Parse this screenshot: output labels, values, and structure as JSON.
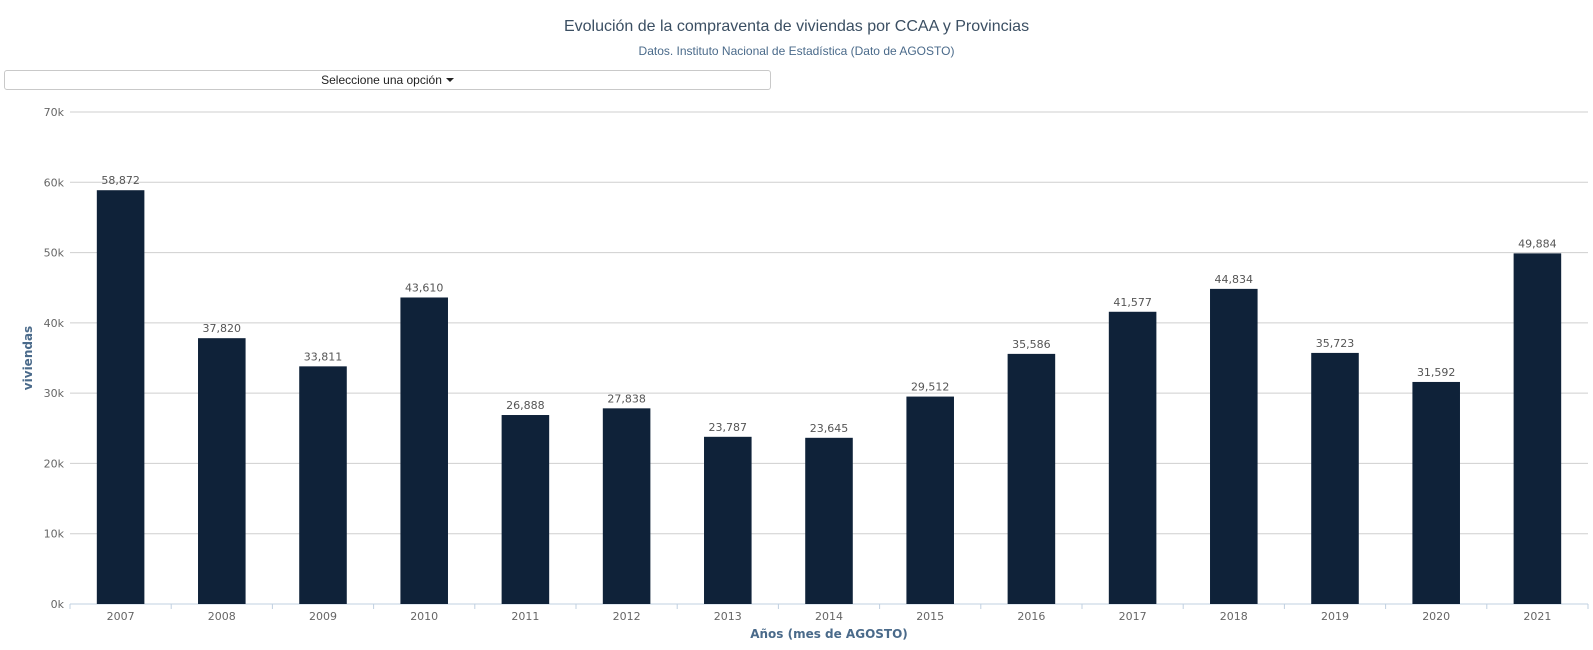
{
  "chart_data": {
    "type": "bar",
    "title": "Evolución de la compraventa de viviendas por CCAA y Provincias",
    "subtitle": "Datos. Instituto Nacional de Estadística (Dato de AGOSTO)",
    "xlabel": "Años (mes de AGOSTO)",
    "ylabel": "viviendas",
    "ylim": [
      0,
      70000
    ],
    "yticks": [
      0,
      10000,
      20000,
      30000,
      40000,
      50000,
      60000,
      70000
    ],
    "ytick_labels": [
      "0k",
      "10k",
      "20k",
      "30k",
      "40k",
      "50k",
      "60k",
      "70k"
    ],
    "categories": [
      "2007",
      "2008",
      "2009",
      "2010",
      "2011",
      "2012",
      "2013",
      "2014",
      "2015",
      "2016",
      "2017",
      "2018",
      "2019",
      "2020",
      "2021"
    ],
    "values": [
      58872,
      37820,
      33811,
      43610,
      26888,
      27838,
      23787,
      23645,
      29512,
      35586,
      41577,
      44834,
      35723,
      31592,
      49884
    ],
    "value_labels": [
      "58,872",
      "37,820",
      "33,811",
      "43,610",
      "26,888",
      "27,838",
      "23,787",
      "23,645",
      "29,512",
      "35,586",
      "41,577",
      "44,834",
      "35,723",
      "31,592",
      "49,884"
    ],
    "bar_color": "#0f2239",
    "grid": true,
    "legend": "none"
  },
  "controls": {
    "select_label": "Seleccione una opción"
  }
}
